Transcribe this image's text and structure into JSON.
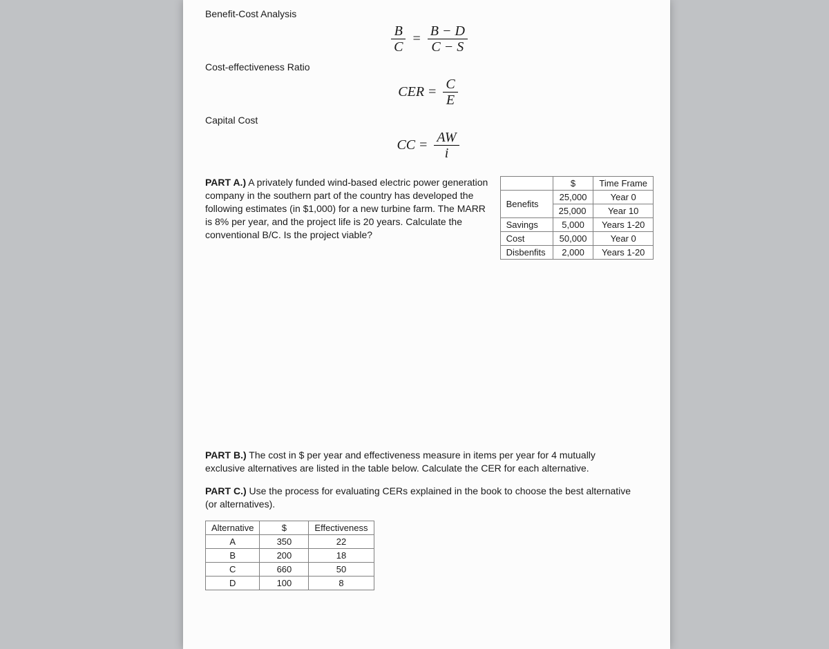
{
  "headings": {
    "bca": "Benefit-Cost Analysis",
    "cer": "Cost-effectiveness Ratio",
    "cc": "Capital Cost"
  },
  "formulas": {
    "bca": {
      "lhs_num": "B",
      "lhs_den": "C",
      "eq": "=",
      "rhs_num": "B − D",
      "rhs_den": "C − S"
    },
    "cer": {
      "lhs": "CER",
      "eq": "=",
      "rhs_num": "C",
      "rhs_den": "E"
    },
    "cc": {
      "lhs": "CC",
      "eq": "=",
      "rhs_num": "AW",
      "rhs_den": "i"
    }
  },
  "partA": {
    "label": "PART A.)",
    "text": " A privately funded wind-based electric power generation company in the southern part of the country has developed the following estimates (in $1,000) for a new turbine farm. The MARR is 8% per year, and the project life is 20 years. Calculate the conventional B/C. Is the project viable?",
    "table": {
      "headers": {
        "blank": "",
        "dollar": "$",
        "timeframe": "Time Frame"
      },
      "rows": [
        {
          "label": "Benefits",
          "value": "25,000",
          "time": "Year 0",
          "rowspan": true
        },
        {
          "label": "",
          "value": "25,000",
          "time": "Year 10"
        },
        {
          "label": "Savings",
          "value": "5,000",
          "time": "Years 1-20"
        },
        {
          "label": "Cost",
          "value": "50,000",
          "time": "Year 0"
        },
        {
          "label": "Disbenfits",
          "value": "2,000",
          "time": "Years 1-20"
        }
      ]
    }
  },
  "partB": {
    "label": "PART B.)",
    "text": " The cost in $ per year and effectiveness measure in items per year for 4 mutually exclusive alternatives are listed in the table below. Calculate the CER for each alternative."
  },
  "partC": {
    "label": "PART C.)",
    "text": " Use the process for evaluating CERs explained in the book to choose the best alternative (or alternatives)."
  },
  "altTable": {
    "headers": {
      "alt": "Alternative",
      "dollar": "$",
      "eff": "Effectiveness"
    },
    "rows": [
      {
        "alt": "A",
        "cost": "350",
        "eff": "22"
      },
      {
        "alt": "B",
        "cost": "200",
        "eff": "18"
      },
      {
        "alt": "C",
        "cost": "660",
        "eff": "50"
      },
      {
        "alt": "D",
        "cost": "100",
        "eff": "8"
      }
    ]
  },
  "style": {
    "page_bg": "#fcfcfc",
    "body_bg": "#c0c2c5",
    "border_color": "#808080",
    "font_body": 14,
    "font_formula": 20
  }
}
